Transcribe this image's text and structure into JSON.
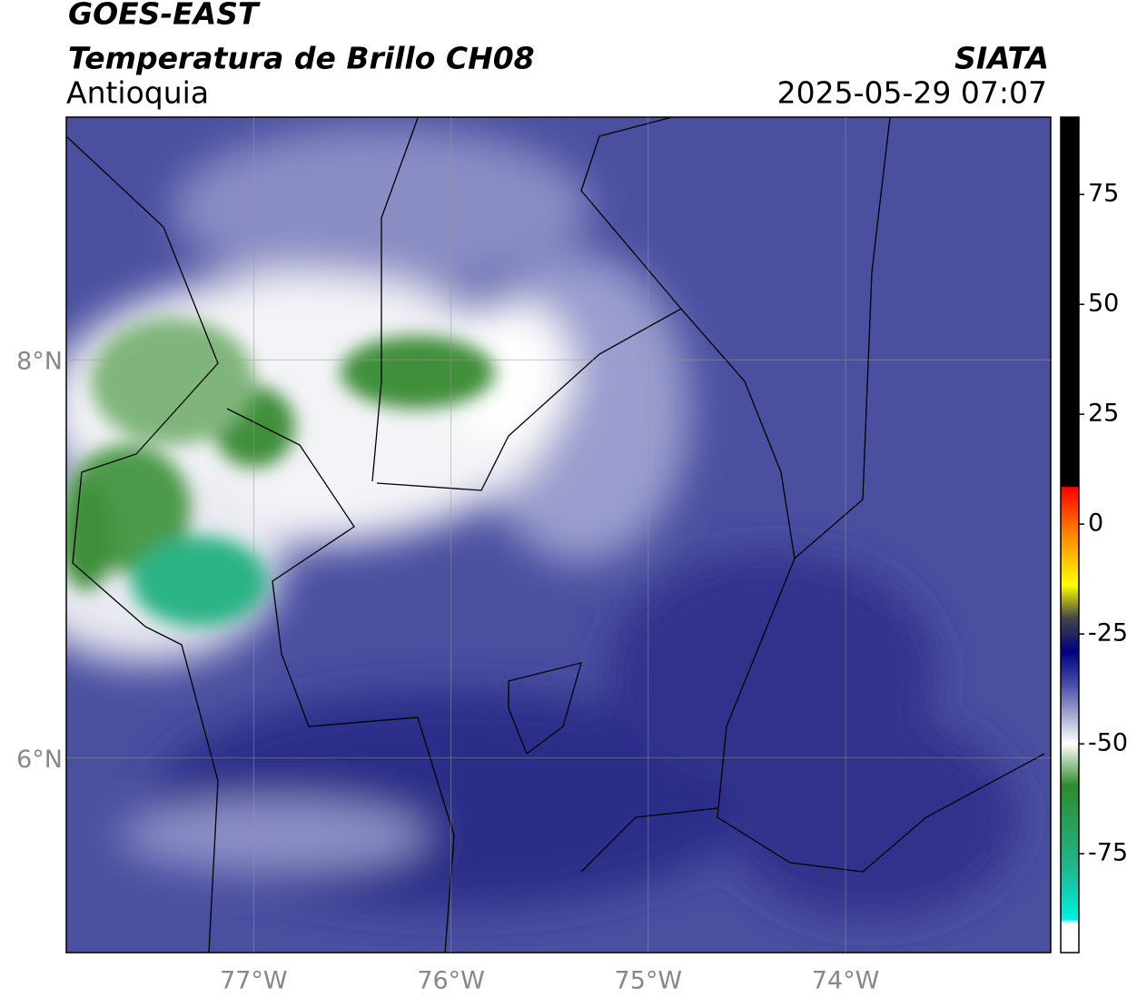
{
  "header": {
    "satellite": "GOES-EAST",
    "title": "Temperatura de Brillo CH08",
    "region": "Antioquia",
    "source": "SIATA",
    "datetime": "2025-05-29 07:07"
  },
  "map": {
    "xlim": [
      -77.95,
      -72.96
    ],
    "ylim": [
      5.02,
      9.22
    ],
    "xticks": [
      {
        "value": -77,
        "label": "77°W"
      },
      {
        "value": -76,
        "label": "76°W"
      },
      {
        "value": -75,
        "label": "75°W"
      },
      {
        "value": -74,
        "label": "74°W"
      }
    ],
    "yticks": [
      {
        "value": 6,
        "label": "6°N"
      },
      {
        "value": 8,
        "label": "8°N"
      }
    ],
    "grid": true
  },
  "colorbar": {
    "lim": [
      -97.5,
      92.6
    ],
    "ticks": [
      75,
      50,
      25,
      0,
      -25,
      -50,
      -75
    ]
  }
}
